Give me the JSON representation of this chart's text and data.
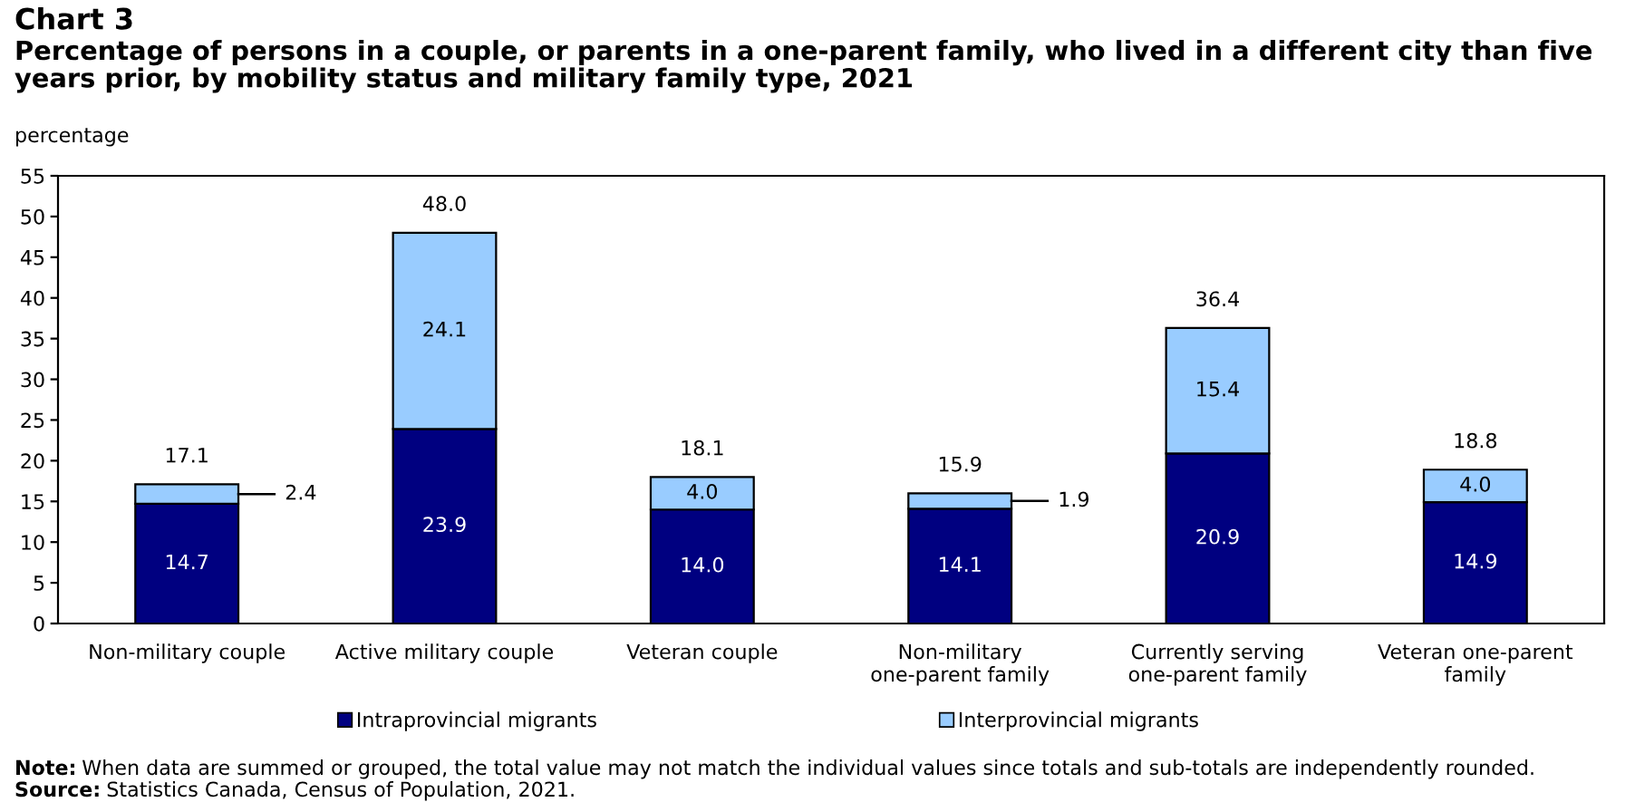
{
  "chart_data": {
    "type": "bar",
    "title": "Chart 3",
    "subtitle": "Percentage of persons in a couple, or parents in a one-parent family, who lived in a different city than five years prior, by mobility status and military family type, 2021",
    "ylabel": "percentage",
    "categories": [
      "Non-military couple",
      "Active military couple",
      "Veteran couple",
      "Non-military\none-parent family",
      "Currently serving\none-parent family",
      "Veteran one-parent\nfamily"
    ],
    "series": [
      {
        "name": "Intraprovincial migrants",
        "color": "#000080",
        "values": [
          14.7,
          23.9,
          14.0,
          14.1,
          20.9,
          14.9
        ],
        "value_labels": [
          "14.7",
          "23.9",
          "14.0",
          "14.1",
          "20.9",
          "14.9"
        ]
      },
      {
        "name": "Interprovincial migrants",
        "color": "#99ccff",
        "values": [
          2.4,
          24.1,
          4.0,
          1.9,
          15.4,
          4.0
        ],
        "value_labels": [
          "2.4",
          "24.1",
          "4.0",
          "1.9",
          "15.4",
          "4.0"
        ]
      }
    ],
    "stacked": true,
    "totals": [
      "17.1",
      "48.0",
      "18.1",
      "15.9",
      "36.4",
      "18.8"
    ],
    "ylim": [
      0,
      55
    ],
    "yticks": [
      0,
      5,
      10,
      15,
      20,
      25,
      30,
      35,
      40,
      45,
      50,
      55
    ],
    "grid": false,
    "legend": "bottom",
    "annotations": [
      "Note: When data are summed or grouped, the total value may not match the individual values since totals and sub-totals are independently rounded.",
      "Source: Statistics Canada, Census of Population, 2021."
    ]
  }
}
